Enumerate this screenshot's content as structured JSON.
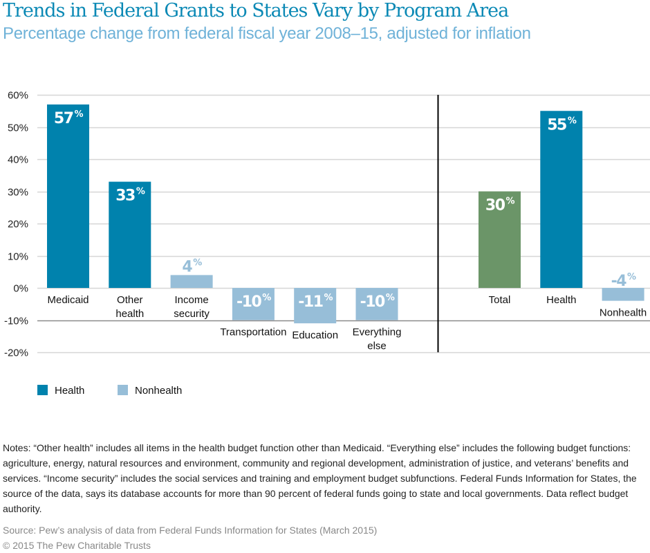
{
  "header": {
    "title": "Trends in Federal Grants to States Vary by Program Area",
    "subtitle": "Percentage change from federal fiscal year 2008–15, adjusted for inflation"
  },
  "colors": {
    "health": "#0082ad",
    "nonhealth": "#97bed8",
    "total": "#6b9568",
    "title": "#0b89b5",
    "subtitle": "#6fb2d8",
    "gridline": "#d6d6d6",
    "gridline_dark": "#8a8a8a",
    "separator": "#000000"
  },
  "chart_data": {
    "type": "bar",
    "title": "Trends in Federal Grants to States Vary by Program Area",
    "subtitle": "Percentage change from federal fiscal year 2008–15, adjusted for inflation",
    "xlabel": "",
    "ylabel": "",
    "ylim": [
      -20,
      60
    ],
    "yticks": [
      60,
      50,
      40,
      30,
      20,
      10,
      0,
      -10,
      -20
    ],
    "ytick_labels": [
      "60%",
      "50%",
      "40%",
      "30%",
      "20%",
      "10%",
      "0%",
      "-10%",
      "-20%"
    ],
    "grid": true,
    "groups": [
      {
        "name": "By program area",
        "categories": [
          {
            "label": [
              "Medicaid"
            ],
            "value": 57,
            "series": "health",
            "data_label": "57"
          },
          {
            "label": [
              "Other",
              "health"
            ],
            "value": 33,
            "series": "health",
            "data_label": "33"
          },
          {
            "label": [
              "Income",
              "security"
            ],
            "value": 4,
            "series": "nonhealth",
            "data_label": "4"
          },
          {
            "label": [
              "Transportation"
            ],
            "value": -10,
            "series": "nonhealth",
            "data_label": "-10"
          },
          {
            "label": [
              "Education"
            ],
            "value": -11,
            "series": "nonhealth",
            "data_label": "-11"
          },
          {
            "label": [
              "Everything",
              "else"
            ],
            "value": -10,
            "series": "nonhealth",
            "data_label": "-10"
          }
        ]
      },
      {
        "name": "Summary",
        "categories": [
          {
            "label": [
              "Total"
            ],
            "value": 30,
            "series": "total",
            "data_label": "30"
          },
          {
            "label": [
              "Health"
            ],
            "value": 55,
            "series": "health",
            "data_label": "55"
          },
          {
            "label": [
              "Nonhealth"
            ],
            "value": -4,
            "series": "nonhealth",
            "data_label": "-4"
          }
        ]
      }
    ],
    "percent_symbol": "%",
    "legend": {
      "placement": "bottom-left",
      "entries": [
        {
          "name": "Health",
          "series": "health"
        },
        {
          "name": "Nonhealth",
          "series": "nonhealth"
        }
      ]
    }
  },
  "notes": "Notes: “Other health” includes all items in the health budget function other than Medicaid. “Everything else” includes the following budget functions: agriculture, energy, natural resources and environment, community and regional development, administration of justice, and veterans’ benefits and services. “Income security” includes the social services and training and employment budget subfunctions. Federal Funds Information for States, the source of the data, says its database accounts for more than 90 percent of federal funds going to state and local governments. Data reflect budget authority.",
  "source": "Source: Pew’s analysis of data from Federal Funds Information for States (March 2015)",
  "copyright": "© 2015 The Pew Charitable Trusts"
}
